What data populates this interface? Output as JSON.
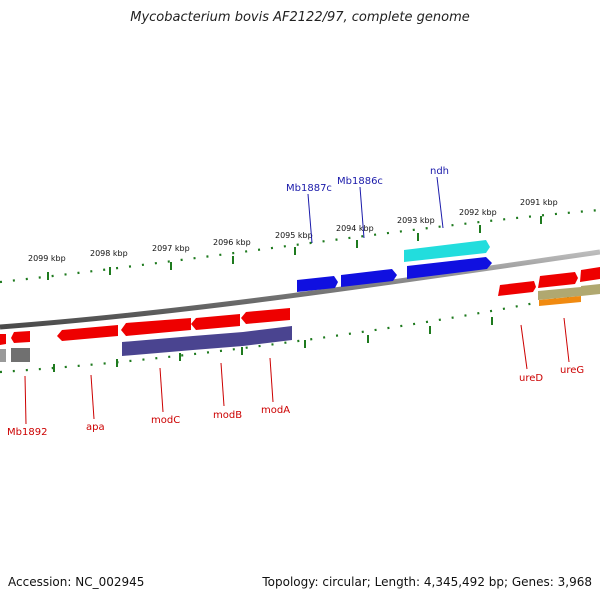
{
  "title": "Mycobacterium bovis AF2122/97, complete genome",
  "footer": {
    "accession": "Accession: NC_002945",
    "summary": "Topology: circular; Length: 4,345,492 bp; Genes: 3,968"
  },
  "colors": {
    "backbone": "#8a8a8a",
    "tick": "#1e7a1e",
    "gene_red": "#ee0000",
    "gene_blue": "#1010e0",
    "gene_cyan": "#22dddd",
    "gene_purple": "#4a4490",
    "gene_gray": "#707070",
    "gene_olive": "#b0a870",
    "gene_orange": "#f08a10"
  },
  "tick_labels": [
    "2099 kbp",
    "2098 kbp",
    "2097 kbp",
    "2096 kbp",
    "2095 kbp",
    "2094 kbp",
    "2093 kbp",
    "2092 kbp",
    "2091 kbp"
  ],
  "gene_labels_top": [
    "Mb1887c",
    "Mb1886c",
    "ndh"
  ],
  "gene_labels_bottom": [
    "Mb1892",
    "apa",
    "modC",
    "modB",
    "modA",
    "ureD",
    "ureG"
  ]
}
